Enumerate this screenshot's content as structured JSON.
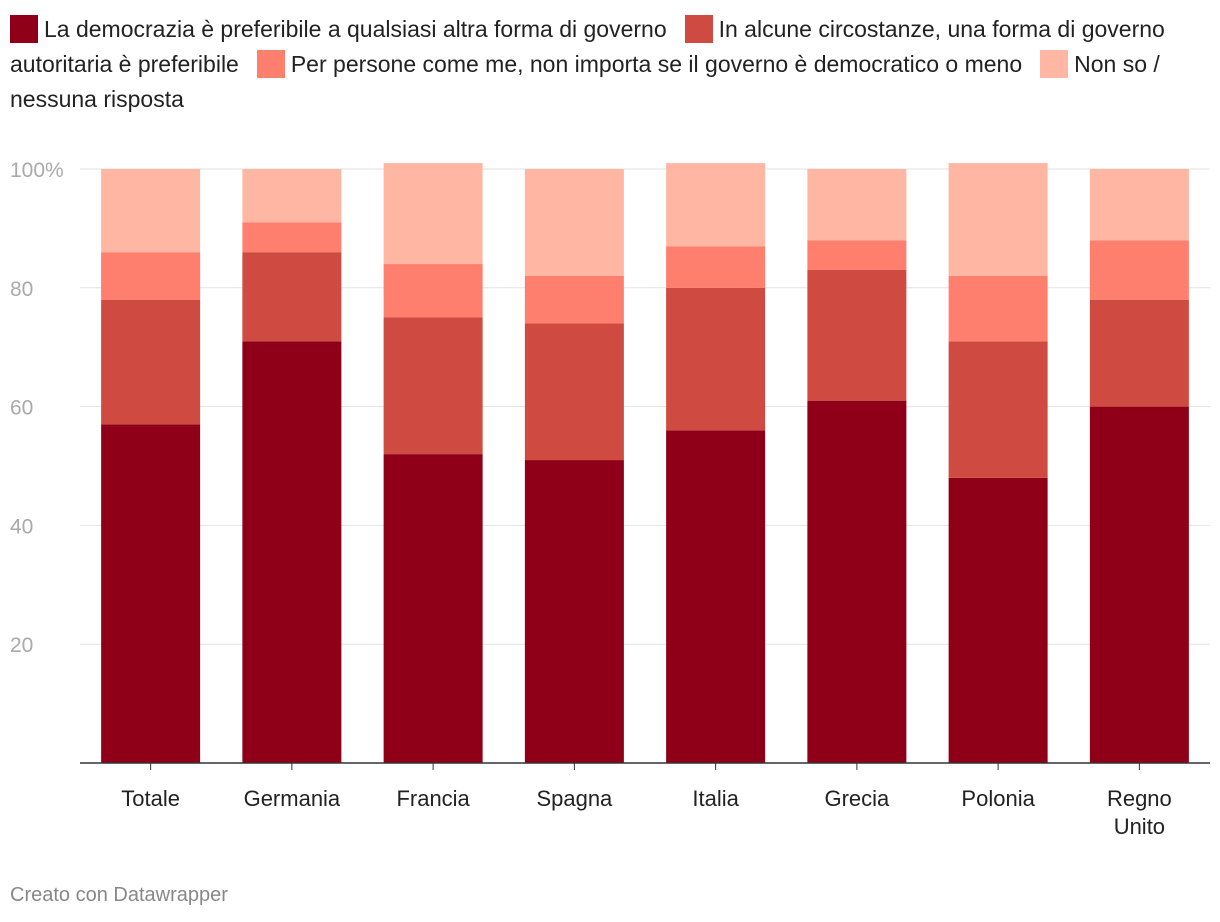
{
  "chart_data": {
    "type": "bar",
    "stacked": true,
    "categories": [
      "Totale",
      "Germania",
      "Francia",
      "Spagna",
      "Italia",
      "Grecia",
      "Polonia",
      "Regno Unito"
    ],
    "series": [
      {
        "name": "La democrazia è preferibile a qualsiasi altra forma di governo",
        "color": "#8f0018",
        "values": [
          57,
          71,
          52,
          51,
          56,
          61,
          48,
          60
        ]
      },
      {
        "name": "In alcune circostanze, una forma di governo autoritaria è preferibile",
        "color": "#cf4a40",
        "values": [
          21,
          15,
          23,
          23,
          24,
          22,
          23,
          18
        ]
      },
      {
        "name": "Per persone come me, non importa se il governo è democratico o meno",
        "color": "#ff7f6e",
        "values": [
          8,
          5,
          9,
          8,
          7,
          5,
          11,
          10
        ]
      },
      {
        "name": "Non so / nessuna risposta",
        "color": "#ffb6a3",
        "values": [
          14,
          9,
          17,
          18,
          14,
          12,
          19,
          12
        ]
      }
    ],
    "yticks": [
      {
        "value": 100,
        "label": "100%"
      },
      {
        "value": 80,
        "label": "80"
      },
      {
        "value": 60,
        "label": "60"
      },
      {
        "value": 40,
        "label": "40"
      },
      {
        "value": 20,
        "label": "20"
      }
    ],
    "ylim": [
      0,
      100
    ],
    "grid": true,
    "legend_position": "top"
  },
  "credit": "Creato con Datawrapper"
}
